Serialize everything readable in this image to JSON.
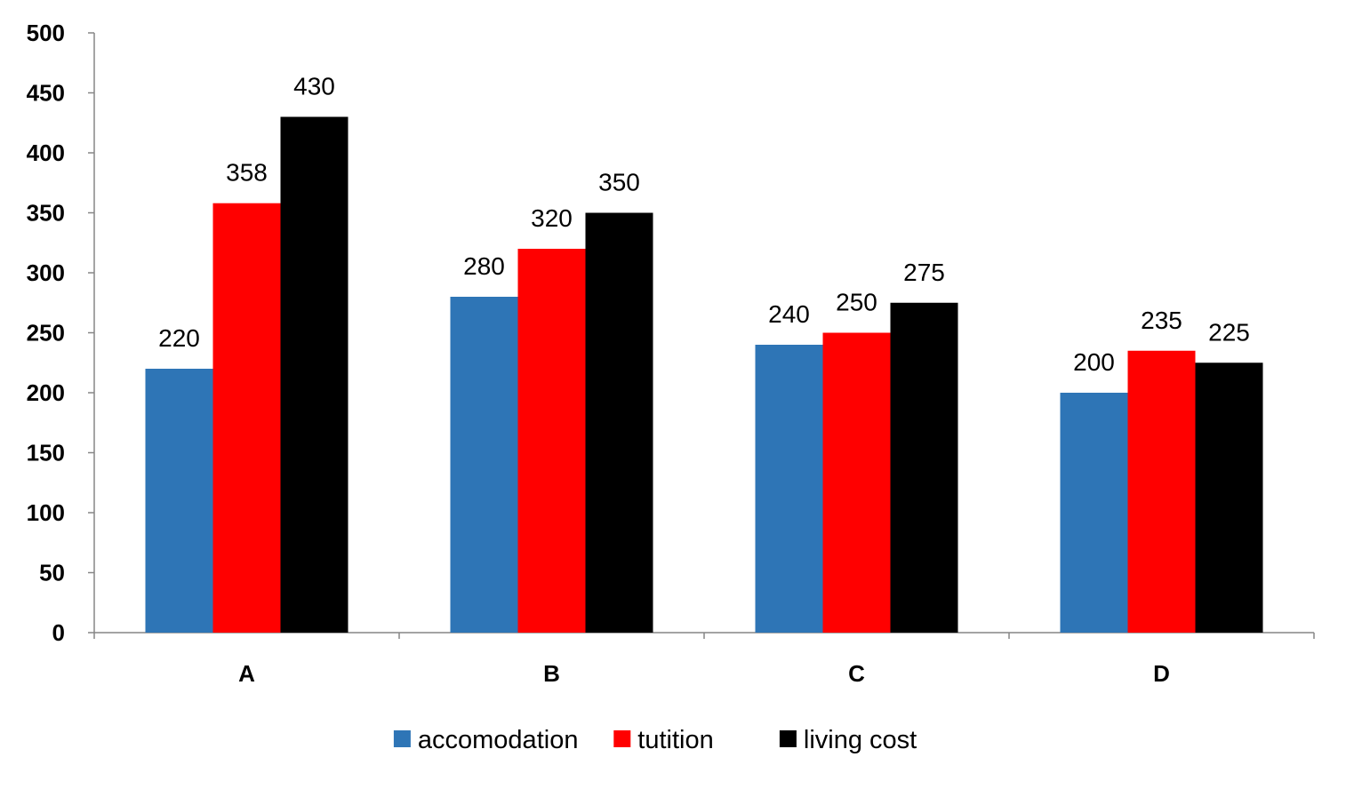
{
  "chart_data": {
    "type": "bar",
    "title": "",
    "xlabel": "",
    "ylabel": "",
    "categories": [
      "A",
      "B",
      "C",
      "D"
    ],
    "series": [
      {
        "name": "accomodation",
        "color": "#2E75B6",
        "values": [
          220,
          280,
          240,
          200
        ]
      },
      {
        "name": "tutition",
        "color": "#FF0000",
        "values": [
          358,
          320,
          250,
          235
        ]
      },
      {
        "name": "living cost",
        "color": "#000000",
        "values": [
          430,
          350,
          275,
          225
        ]
      }
    ],
    "ylim": [
      0,
      500
    ],
    "yticks": [
      0,
      50,
      100,
      150,
      200,
      250,
      300,
      350,
      400,
      450,
      500
    ],
    "grid": false,
    "data_labels": true,
    "legend": "bottom"
  }
}
